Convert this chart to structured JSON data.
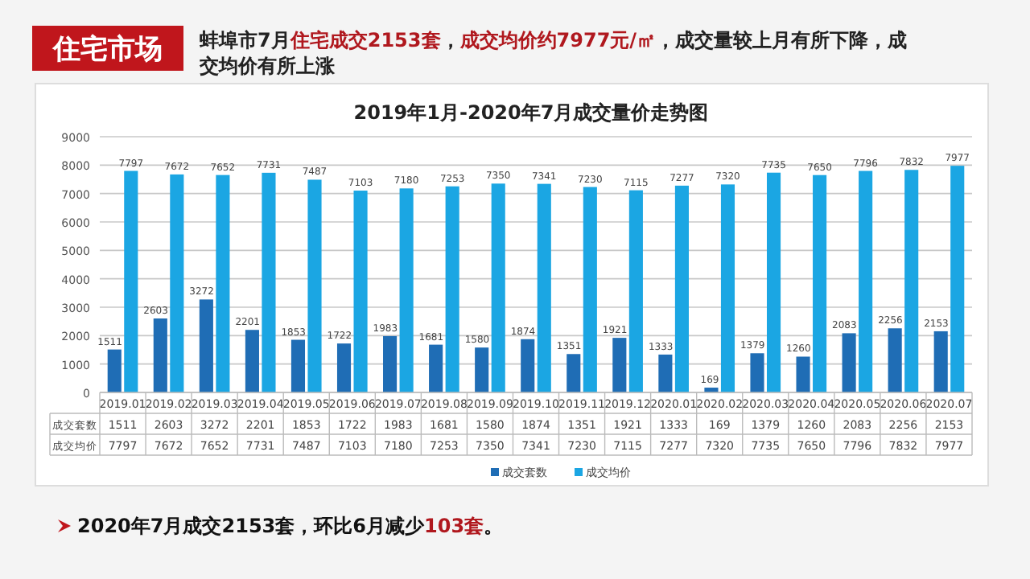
{
  "chart_data": [
    {
      "type": "bar",
      "title": "2019年1月-2020年7月成交量价走势图",
      "annotations": [
        "住宅市场",
        "蚌埠市7月**住宅成交2153套**，**成交均价约7977元/㎡**，成交量较上月有所下降，成交均价有所上涨",
        "2020年7月成交2153套，环比6月减少**103套**。"
      ],
      "categories": [
        "2019.01",
        "2019.02",
        "2019.03",
        "2019.04",
        "2019.05",
        "2019.06",
        "2019.07",
        "2019.08",
        "2019.09",
        "2019.10",
        "2019.11",
        "2019.12",
        "2020.01",
        "2020.02",
        "2020.03",
        "2020.04",
        "2020.05",
        "2020.06",
        "2020.07"
      ],
      "series": [
        {
          "name": "成交套数",
          "color": "#1f6db5",
          "values": [
            1511,
            2603,
            3272,
            2201,
            1853,
            1722,
            1983,
            1681,
            1580,
            1874,
            1351,
            1921,
            1333,
            169,
            1379,
            1260,
            2083,
            2256,
            2153
          ]
        },
        {
          "name": "成交均价",
          "color": "#1ba6e3",
          "values": [
            7797,
            7672,
            7652,
            7731,
            7487,
            7103,
            7180,
            7253,
            7350,
            7341,
            7230,
            7115,
            7277,
            7320,
            7735,
            7650,
            7796,
            7832,
            7977
          ]
        }
      ],
      "ylim": [
        0,
        9000
      ],
      "yticks": [
        0,
        1000,
        2000,
        3000,
        4000,
        5000,
        6000,
        7000,
        8000,
        9000
      ],
      "grid": "y",
      "legend": "bottom",
      "data_labels": true
    },
    {
      "type": "other",
      "annotations": [
        "成交套数",
        "1511",
        "2603",
        "3272",
        "2201",
        "1853",
        "1722",
        "1983",
        "1681",
        "1580",
        "1874",
        "1351",
        "1921",
        "1333",
        "169",
        "1379",
        "1260",
        "2083",
        "2256",
        "2153",
        "成交均价",
        "7797",
        "7672",
        "7652",
        "7731",
        "7487",
        "7103",
        "7180",
        "7253",
        "7350",
        "7341",
        "7230",
        "7115",
        "7277",
        "7320",
        "7735",
        "7650",
        "7796",
        "7832",
        "7977"
      ]
    }
  ]
}
